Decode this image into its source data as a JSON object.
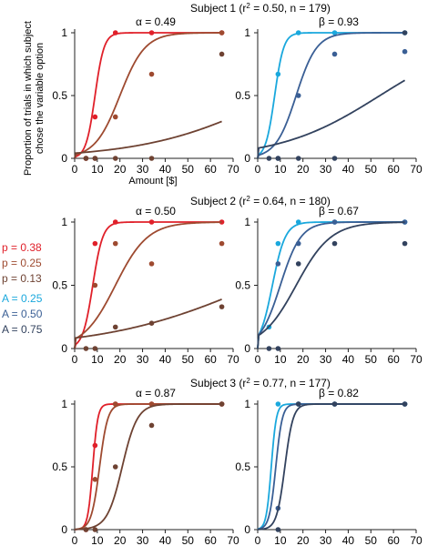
{
  "figure": {
    "ylabel_line1": "Proportion of trials in which subject",
    "ylabel_line2": "chose the variable option",
    "xlabel": "Amount [$]"
  },
  "colors": {
    "red": "#e0202a",
    "mid_brown": "#9e4a30",
    "dark_brown": "#6e4232",
    "cyan": "#1aa8dd",
    "mid_blue": "#3a5f95",
    "navy": "#32425e"
  },
  "legend": {
    "p_items": [
      {
        "label": "p = 0.38",
        "color": "#e0202a"
      },
      {
        "label": "p = 0.25",
        "color": "#9e4a30"
      },
      {
        "label": "p = 0.13",
        "color": "#6e4232"
      }
    ],
    "a_items": [
      {
        "label": "A = 0.25",
        "color": "#1aa8dd"
      },
      {
        "label": "A = 0.50",
        "color": "#3a5f95"
      },
      {
        "label": "A = 0.75",
        "color": "#32425e"
      }
    ]
  },
  "subjects": [
    {
      "title": "Subject 1 (r",
      "sup": "2",
      "title_rest": " = 0.50, n = 179)"
    },
    {
      "title": "Subject 2 (r",
      "sup": "2",
      "title_rest": " = 0.64, n = 180)"
    },
    {
      "title": "Subject 3 (r",
      "sup": "2",
      "title_rest": " = 0.77, n = 177)"
    }
  ],
  "chart_data": [
    {
      "type": "scatter",
      "subject": 1,
      "panel": "alpha",
      "param_label": "α = 0.49",
      "xlim": [
        0,
        70
      ],
      "ylim": [
        0,
        1
      ],
      "xticks": [
        0,
        10,
        20,
        30,
        40,
        50,
        60,
        70
      ],
      "yticks": [
        0,
        0.5,
        1
      ],
      "series": [
        {
          "color": "#e0202a",
          "curve": {
            "x50": 9,
            "k": 0.5
          },
          "points": [
            [
              5,
              0
            ],
            [
              9,
              0.33
            ],
            [
              18,
              1
            ],
            [
              34,
              1
            ],
            [
              65,
              1
            ]
          ]
        },
        {
          "color": "#9e4a30",
          "curve": {
            "x50": 20,
            "k": 0.18
          },
          "points": [
            [
              5,
              0
            ],
            [
              9,
              0
            ],
            [
              18,
              0.33
            ],
            [
              34,
              0.67
            ],
            [
              65,
              1
            ]
          ]
        },
        {
          "color": "#6e4232",
          "curve": {
            "x50": 90,
            "k": 0.035
          },
          "points": [
            [
              5,
              0
            ],
            [
              9,
              0
            ],
            [
              18,
              0
            ],
            [
              34,
              0
            ],
            [
              65,
              0.83
            ]
          ]
        }
      ]
    },
    {
      "type": "scatter",
      "subject": 1,
      "panel": "beta",
      "param_label": "β = 0.93",
      "xlim": [
        0,
        70
      ],
      "ylim": [
        0,
        1
      ],
      "xticks": [
        0,
        10,
        20,
        30,
        40,
        50,
        60,
        70
      ],
      "yticks": [
        0,
        0.5,
        1
      ],
      "series": [
        {
          "color": "#1aa8dd",
          "curve": {
            "x50": 7.5,
            "k": 0.5
          },
          "points": [
            [
              9,
              0.67
            ],
            [
              18,
              1
            ],
            [
              34,
              1
            ],
            [
              65,
              1
            ]
          ]
        },
        {
          "color": "#3a5f95",
          "curve": {
            "x50": 17,
            "k": 0.22
          },
          "points": [
            [
              9,
              0
            ],
            [
              18,
              0.5
            ],
            [
              34,
              0.83
            ],
            [
              65,
              0.85
            ]
          ]
        },
        {
          "color": "#32425e",
          "curve": {
            "x50": 54,
            "k": 0.045
          },
          "points": [
            [
              5,
              0
            ],
            [
              9,
              0
            ],
            [
              18,
              0
            ],
            [
              34,
              0
            ],
            [
              65,
              1
            ]
          ]
        }
      ]
    },
    {
      "type": "scatter",
      "subject": 2,
      "panel": "alpha",
      "param_label": "α = 0.50",
      "xlim": [
        0,
        70
      ],
      "ylim": [
        0,
        1
      ],
      "xticks": [
        0,
        10,
        20,
        30,
        40,
        50,
        60,
        70
      ],
      "yticks": [
        0,
        0.5,
        1
      ],
      "series": [
        {
          "color": "#e0202a",
          "curve": {
            "x50": 8,
            "k": 0.45
          },
          "points": [
            [
              9,
              0.83
            ],
            [
              18,
              1
            ],
            [
              34,
              1
            ],
            [
              65,
              1
            ]
          ]
        },
        {
          "color": "#9e4a30",
          "curve": {
            "x50": 18,
            "k": 0.14
          },
          "points": [
            [
              9,
              0.5
            ],
            [
              18,
              0.83
            ],
            [
              34,
              0.67
            ],
            [
              65,
              0.83
            ]
          ]
        },
        {
          "color": "#6e4232",
          "curve": {
            "x50": 80,
            "k": 0.03
          },
          "points": [
            [
              5,
              0
            ],
            [
              9,
              0
            ],
            [
              18,
              0.17
            ],
            [
              34,
              0.2
            ],
            [
              65,
              0.33
            ]
          ]
        }
      ]
    },
    {
      "type": "scatter",
      "subject": 2,
      "panel": "beta",
      "param_label": "β = 0.67",
      "xlim": [
        0,
        70
      ],
      "ylim": [
        0,
        1
      ],
      "xticks": [
        0,
        10,
        20,
        30,
        40,
        50,
        60,
        70
      ],
      "yticks": [
        0,
        0.5,
        1
      ],
      "series": [
        {
          "color": "#1aa8dd",
          "curve": {
            "x50": 6.5,
            "k": 0.35
          },
          "points": [
            [
              5,
              0.17
            ],
            [
              9,
              0.83
            ],
            [
              18,
              1
            ],
            [
              34,
              1
            ],
            [
              65,
              1
            ]
          ]
        },
        {
          "color": "#3a5f95",
          "curve": {
            "x50": 10,
            "k": 0.22
          },
          "points": [
            [
              9,
              0.67
            ],
            [
              18,
              0.83
            ],
            [
              34,
              1
            ],
            [
              65,
              1
            ]
          ]
        },
        {
          "color": "#32425e",
          "curve": {
            "x50": 17,
            "k": 0.13
          },
          "points": [
            [
              5,
              0
            ],
            [
              9,
              0
            ],
            [
              18,
              0.67
            ],
            [
              34,
              0.83
            ],
            [
              65,
              0.83
            ]
          ]
        }
      ]
    },
    {
      "type": "scatter",
      "subject": 3,
      "panel": "alpha",
      "param_label": "α = 0.87",
      "xlim": [
        0,
        70
      ],
      "ylim": [
        0,
        1
      ],
      "xticks": [
        0,
        10,
        20,
        30,
        40,
        50,
        60,
        70
      ],
      "yticks": [
        0,
        0.5,
        1
      ],
      "series": [
        {
          "color": "#e0202a",
          "curve": {
            "x50": 8,
            "k": 0.9
          },
          "points": [
            [
              5,
              0
            ],
            [
              9,
              0.67
            ],
            [
              18,
              1
            ],
            [
              34,
              1
            ],
            [
              65,
              1
            ]
          ]
        },
        {
          "color": "#9e4a30",
          "curve": {
            "x50": 11,
            "k": 0.55
          },
          "points": [
            [
              9,
              0.4
            ],
            [
              18,
              1
            ],
            [
              34,
              1
            ],
            [
              65,
              1
            ]
          ]
        },
        {
          "color": "#6e4232",
          "curve": {
            "x50": 21,
            "k": 0.3
          },
          "points": [
            [
              5,
              0
            ],
            [
              9,
              0
            ],
            [
              18,
              0.5
            ],
            [
              34,
              0.83
            ],
            [
              65,
              1
            ]
          ]
        }
      ]
    },
    {
      "type": "scatter",
      "subject": 3,
      "panel": "beta",
      "param_label": "β = 0.82",
      "xlim": [
        0,
        70
      ],
      "ylim": [
        0,
        1
      ],
      "xticks": [
        0,
        10,
        20,
        30,
        40,
        50,
        60,
        70
      ],
      "yticks": [
        0,
        0.5,
        1
      ],
      "series": [
        {
          "color": "#1aa8dd",
          "curve": {
            "x50": 6,
            "k": 0.9
          },
          "points": [
            [
              9,
              1
            ],
            [
              18,
              1
            ],
            [
              34,
              1
            ],
            [
              65,
              1
            ]
          ]
        },
        {
          "color": "#3a5f95",
          "curve": {
            "x50": 8,
            "k": 0.7
          },
          "points": [
            [
              9,
              0.17
            ],
            [
              18,
              1
            ],
            [
              34,
              1
            ],
            [
              65,
              1
            ]
          ]
        },
        {
          "color": "#32425e",
          "curve": {
            "x50": 12,
            "k": 0.55
          },
          "points": [
            [
              9,
              0
            ],
            [
              18,
              1
            ],
            [
              34,
              1
            ],
            [
              65,
              1
            ]
          ]
        }
      ]
    }
  ]
}
